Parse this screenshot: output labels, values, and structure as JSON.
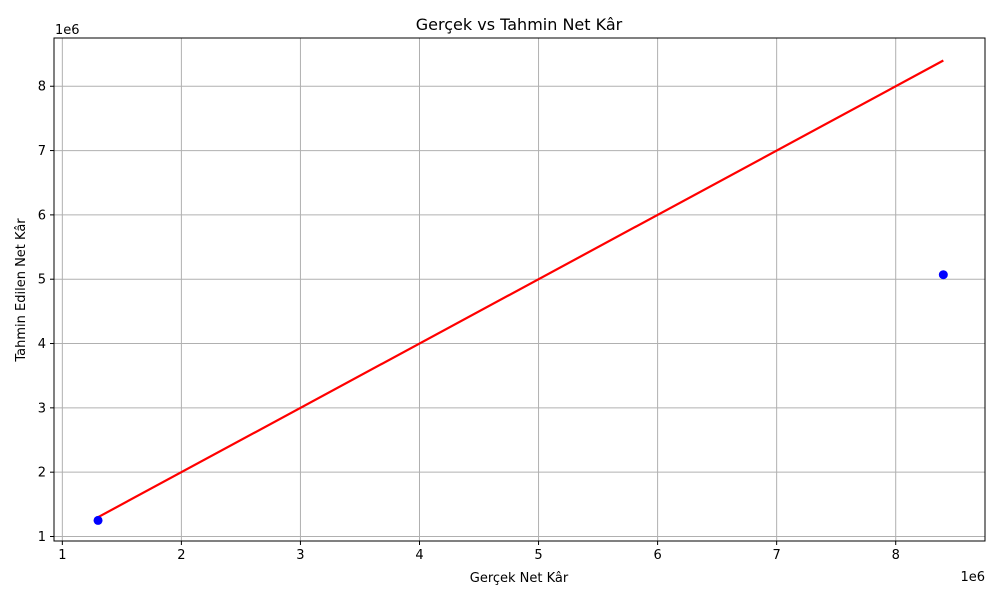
{
  "chart_data": {
    "type": "scatter",
    "title": "Gerçek vs Tahmin Net Kâr",
    "xlabel": "Gerçek Net Kâr",
    "ylabel": "Tahmin Edilen Net Kâr",
    "x_offset_label": "1e6",
    "y_offset_label": "1e6",
    "xlim": [
      0.93,
      8.75
    ],
    "ylim": [
      0.93,
      8.75
    ],
    "xticks": [
      1,
      2,
      3,
      4,
      5,
      6,
      7,
      8
    ],
    "yticks": [
      1,
      2,
      3,
      4,
      5,
      6,
      7,
      8
    ],
    "xtick_labels": [
      "1",
      "2",
      "3",
      "4",
      "5",
      "6",
      "7",
      "8"
    ],
    "ytick_labels": [
      "1",
      "2",
      "3",
      "4",
      "5",
      "6",
      "7",
      "8"
    ],
    "grid": true,
    "series": [
      {
        "kind": "scatter",
        "color": "#0000ff",
        "x": [
          1.3,
          8.4
        ],
        "y": [
          1.25,
          5.07
        ]
      },
      {
        "kind": "line",
        "color": "#ff0000",
        "x": [
          1.3,
          8.4
        ],
        "y": [
          1.3,
          8.4
        ]
      }
    ]
  }
}
